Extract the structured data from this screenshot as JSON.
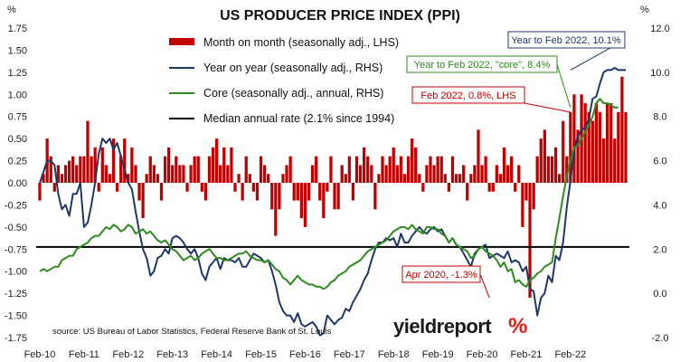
{
  "chart_data": {
    "type": "bar+line",
    "title": "US PRODUCER PRICE INDEX (PPI)",
    "left_unit": "%",
    "right_unit": "%",
    "left_axis": {
      "min": -1.75,
      "max": 1.75,
      "step": 0.25,
      "tick_labels": [
        "1.75",
        "1.50",
        "1.25",
        "1.00",
        "0.75",
        "0.50",
        "0.25",
        "0.00",
        "-0.25",
        "-0.50",
        "-0.75",
        "-1.00",
        "-1.25",
        "-1.50",
        "-1.75"
      ]
    },
    "right_axis": {
      "min": -2.0,
      "max": 12.0,
      "step": 2,
      "tick_labels": [
        "12.0",
        "10.0",
        "8.0",
        "6.0",
        "4.0",
        "2.0",
        "0.0",
        "-2.0"
      ]
    },
    "x_axis": {
      "start": "2010-02",
      "end": "2022-02",
      "tick_labels": [
        "Feb-10",
        "Feb-11",
        "Feb-12",
        "Feb-13",
        "Feb-14",
        "Feb-15",
        "Feb-16",
        "Feb-17",
        "Feb-18",
        "Feb-19",
        "Feb-20",
        "Feb-21",
        "Feb-22"
      ]
    },
    "legend": [
      {
        "label": "Month on month (seasonally adj., LHS)",
        "color": "#c00000",
        "kind": "bar"
      },
      {
        "label": "Year on year (seasonally adj., RHS)",
        "color": "#1f3864",
        "kind": "line"
      },
      {
        "label": "Core (seasonally adj., annual, RHS)",
        "color": "#2e8b1e",
        "kind": "line"
      },
      {
        "label": "Median annual rate (2.1% since 1994)",
        "color": "#000000",
        "kind": "line"
      }
    ],
    "legend_position": "top-left",
    "median_rate": 2.1,
    "series": [
      {
        "name": "Month on month (seasonally adj., LHS)",
        "axis": "left",
        "color": "#c00000",
        "values": [
          -0.2,
          0.1,
          0.5,
          0.3,
          -0.1,
          0.2,
          0.1,
          0.2,
          0.25,
          0.3,
          0.2,
          0.3,
          0.3,
          0.7,
          0.3,
          0.4,
          -0.1,
          0.4,
          0.2,
          0.1,
          0.5,
          -0.1,
          0.3,
          0.5,
          0.1,
          0.4,
          0.2,
          -0.2,
          -0.4,
          0.1,
          0.3,
          0.2,
          0.1,
          -0.2,
          0.3,
          0.4,
          0.2,
          0.3,
          0.2,
          0.2,
          -0.1,
          0.2,
          0.3,
          0.3,
          -0.1,
          -0.2,
          0.3,
          0.4,
          0.5,
          0.2,
          0.4,
          0.2,
          0.4,
          -0.1,
          0.1,
          -0.2,
          0.3,
          0.1,
          -0.1,
          -0.2,
          0.3,
          0.2,
          0.1,
          -0.3,
          -0.6,
          -0.3,
          0.1,
          0.2,
          0.3,
          -0.2,
          -0.2,
          -0.4,
          -0.5,
          -0.2,
          0.2,
          0.3,
          -0.2,
          -0.4,
          -0.1,
          0.3,
          -0.3,
          -0.3,
          0.2,
          0.1,
          0.3,
          -0.2,
          0.3,
          0.2,
          0.4,
          0.3,
          0.2,
          -0.3,
          0.1,
          0.3,
          0.2,
          0.3,
          0.4,
          0.2,
          0.3,
          0.1,
          0.3,
          0.5,
          0.4,
          0.1,
          -0.1,
          0.2,
          0.3,
          0.2,
          0.3,
          0.3,
          0.1,
          -0.1,
          0.3,
          0.1,
          0.1,
          0.2,
          -0.2,
          0.1,
          0.2,
          0.6,
          0.2,
          0.3,
          -0.1,
          -0.1,
          0.2,
          0.1,
          0.4,
          0.2,
          0.3,
          -0.1,
          0.2,
          -0.5,
          -0.2,
          -1.3,
          -0.3,
          0.3,
          0.5,
          0.6,
          0.3,
          0.3,
          0.4,
          0.1,
          0.7,
          0.3,
          0.8,
          1.0,
          0.6,
          1.0,
          0.9,
          0.8,
          0.7,
          0.9,
          0.8,
          0.5,
          0.9,
          0.9,
          0.5,
          0.8,
          1.2,
          0.8
        ]
      },
      {
        "name": "Year on year (seasonally adj., RHS)",
        "axis": "right",
        "color": "#1f3864",
        "values": [
          5.0,
          5.5,
          6.0,
          6.0,
          5.8,
          4.5,
          3.8,
          4.0,
          3.5,
          4.5,
          4.5,
          5.0,
          3.0,
          3.2,
          4.0,
          5.0,
          6.3,
          7.0,
          6.8,
          7.0,
          6.5,
          6.8,
          6.2,
          5.6,
          5.0,
          4.7,
          3.7,
          2.8,
          2.0,
          1.6,
          0.8,
          1.0,
          1.6,
          1.7,
          2.0,
          1.8,
          2.5,
          2.6,
          2.5,
          2.3,
          2.0,
          1.8,
          2.0,
          1.6,
          0.9,
          0.6,
          1.2,
          1.4,
          1.6,
          1.1,
          1.6,
          1.5,
          1.5,
          1.4,
          1.6,
          1.2,
          1.2,
          1.5,
          1.8,
          1.7,
          1.6,
          1.4,
          1.5,
          1.0,
          0.4,
          -0.4,
          -0.8,
          -1.0,
          -1.0,
          -1.3,
          -0.9,
          -1.4,
          -1.5,
          -1.4,
          -1.3,
          -1.5,
          -1.9,
          -1.8,
          -1.0,
          -1.2,
          -1.4,
          -1.2,
          -1.1,
          -0.7,
          -0.8,
          -0.4,
          -0.1,
          0.2,
          0.6,
          0.9,
          1.5,
          2.0,
          2.3,
          2.3,
          2.5,
          2.4,
          2.5,
          2.1,
          2.7,
          2.3,
          2.3,
          2.6,
          2.8,
          3.0,
          2.8,
          2.7,
          2.9,
          3.0,
          2.8,
          2.9,
          2.6,
          2.3,
          2.5,
          2.2,
          2.1,
          1.8,
          1.5,
          1.2,
          1.8,
          2.0,
          2.1,
          2.2,
          1.6,
          1.7,
          1.8,
          1.7,
          1.6,
          1.9,
          1.4,
          1.5,
          1.4,
          1.0,
          1.2,
          0.2,
          0.1,
          -1.0,
          -0.2,
          0.0,
          0.8,
          0.5,
          1.7,
          1.5,
          2.3,
          3.9,
          5.1,
          6.5,
          7.1,
          7.4,
          7.5,
          7.9,
          8.8,
          8.9,
          9.5,
          10.0,
          10.1,
          10.1,
          10.2,
          10.1,
          10.1,
          10.1
        ]
      },
      {
        "name": "Core (seasonally adj., annual, RHS)",
        "axis": "right",
        "color": "#2e8b1e",
        "values": [
          1.0,
          1.1,
          1.0,
          1.1,
          1.2,
          1.2,
          1.5,
          1.6,
          1.7,
          1.7,
          2.0,
          2.1,
          2.2,
          2.3,
          2.5,
          2.6,
          2.6,
          2.8,
          3.0,
          2.9,
          3.1,
          3.0,
          2.8,
          2.9,
          3.1,
          3.0,
          2.7,
          2.8,
          2.9,
          2.7,
          2.8,
          2.6,
          2.4,
          2.3,
          2.4,
          2.2,
          2.0,
          1.9,
          1.7,
          1.5,
          1.6,
          1.7,
          1.5,
          1.6,
          1.8,
          1.9,
          2.0,
          1.8,
          1.6,
          1.6,
          1.5,
          1.5,
          1.6,
          1.7,
          1.8,
          1.8,
          1.9,
          1.7,
          1.6,
          1.5,
          1.5,
          1.4,
          1.5,
          1.3,
          1.1,
          1.0,
          0.7,
          0.6,
          0.4,
          0.6,
          0.8,
          0.6,
          0.5,
          0.4,
          0.4,
          0.3,
          0.3,
          0.2,
          0.3,
          0.5,
          0.6,
          0.8,
          0.9,
          1.0,
          1.2,
          1.3,
          1.4,
          1.5,
          1.7,
          1.9,
          2.0,
          2.1,
          2.2,
          2.3,
          2.4,
          2.6,
          2.8,
          2.9,
          3.0,
          3.0,
          2.9,
          3.1,
          2.9,
          2.8,
          2.7,
          3.0,
          3.0,
          2.9,
          2.9,
          2.7,
          2.6,
          2.3,
          2.5,
          2.2,
          2.1,
          2.0,
          1.9,
          1.6,
          1.7,
          2.0,
          2.1,
          1.9,
          1.8,
          1.7,
          1.5,
          1.2,
          1.4,
          1.0,
          1.1,
          0.5,
          0.6,
          0.4,
          0.3,
          0.6,
          0.7,
          0.9,
          1.0,
          1.2,
          1.3,
          1.4,
          2.5,
          3.4,
          4.4,
          5.3,
          6.0,
          6.6,
          6.7,
          7.0,
          7.3,
          7.6,
          8.0,
          8.6,
          8.8,
          8.6,
          8.6,
          8.5,
          8.4,
          8.4
        ]
      }
    ],
    "annotations": [
      {
        "text": "Year to Feb 2022, 10.1%",
        "color": "#1f3864",
        "target": {
          "series": "Year on year (seasonally adj., RHS)",
          "x": "2022-02",
          "y": 10.1
        }
      },
      {
        "text": "Year to Feb 2022, \"core\", 8.4%",
        "color": "#2e8b1e",
        "target": {
          "series": "Core (seasonally adj., annual, RHS)",
          "x": "2022-02",
          "y": 8.4
        }
      },
      {
        "text": "Feb 2022, 0.8%, LHS",
        "color": "#c00000",
        "target": {
          "series": "Month on month (seasonally adj., LHS)",
          "x": "2022-02",
          "y": 0.8
        }
      },
      {
        "text": "Apr 2020, -1.3%",
        "color": "#c00000",
        "target": {
          "series": "Month on month (seasonally adj., LHS)",
          "x": "2020-04",
          "y": -1.3
        }
      }
    ],
    "source": "source: US Bureau of Labor Statistics, Federal Reserve Bank of St. Louis",
    "logo": {
      "text": "yieldreport",
      "symbol": "%"
    }
  }
}
